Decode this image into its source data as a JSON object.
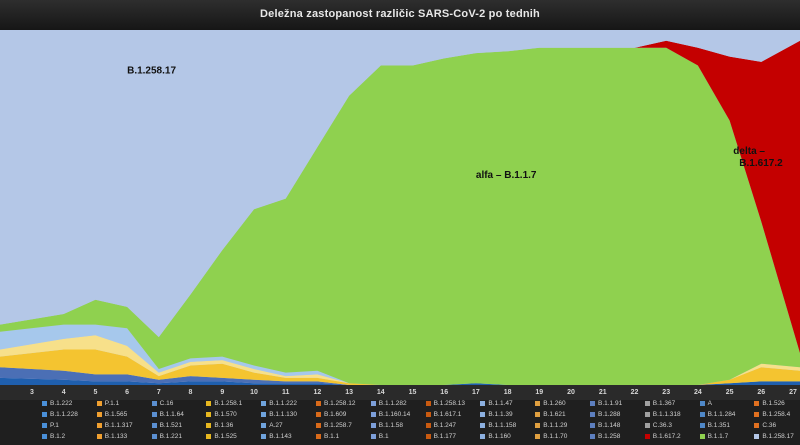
{
  "chart_data": {
    "type": "area",
    "stacked": true,
    "normalized": true,
    "title": "Deležna zastopanost različic SARS-CoV-2 po tednih",
    "xlabel": "",
    "ylabel": "",
    "x": [
      3,
      4,
      5,
      6,
      7,
      8,
      9,
      10,
      11,
      12,
      13,
      14,
      15,
      16,
      17,
      18,
      19,
      20,
      21,
      22,
      23,
      24,
      25,
      26,
      27
    ],
    "ylim": [
      0,
      1
    ],
    "grid": false,
    "legend_position": "bottom",
    "annotations": [
      {
        "text": "B.1.258.17",
        "series": "B.1.258.17"
      },
      {
        "text": "alfa – B.1.1.7",
        "series": "B.1.1.7"
      },
      {
        "text": "delta –",
        "series": "B.1.617.2"
      },
      {
        "text": "B.1.617.2",
        "series": "B.1.617.2"
      }
    ],
    "series": [
      {
        "name": "B.1.1.7",
        "color": "#8fd14f",
        "values": [
          0.02,
          0.03,
          0.07,
          0.06,
          0.09,
          0.18,
          0.3,
          0.44,
          0.49,
          0.63,
          0.81,
          0.9,
          0.9,
          0.92,
          0.93,
          0.94,
          0.95,
          0.95,
          0.95,
          0.95,
          0.95,
          0.9,
          0.73,
          0.4,
          0.04
        ]
      },
      {
        "name": "B.1.617.2",
        "color": "#c40000",
        "values": [
          0,
          0,
          0,
          0,
          0,
          0,
          0,
          0,
          0,
          0,
          0,
          0,
          0,
          0,
          0,
          0,
          0,
          0,
          0,
          0,
          0.02,
          0.05,
          0.18,
          0.45,
          0.88
        ]
      },
      {
        "name": "P.1",
        "color": "#1f5fae",
        "values": [
          0.02,
          0.015,
          0.01,
          0.01,
          0.005,
          0.01,
          0.01,
          0.005,
          0.005,
          0.005,
          0,
          0,
          0,
          0,
          0.005,
          0,
          0,
          0,
          0,
          0,
          0,
          0,
          0.005,
          0.01,
          0.01
        ]
      },
      {
        "name": "B.1.160",
        "color": "#4b6fb5",
        "values": [
          0.03,
          0.025,
          0.02,
          0.02,
          0.01,
          0.015,
          0.01,
          0.01,
          0.005,
          0.005,
          0,
          0,
          0,
          0,
          0,
          0,
          0,
          0,
          0,
          0,
          0,
          0,
          0,
          0,
          0
        ]
      },
      {
        "name": "B.1.1.70",
        "color": "#f4c430",
        "values": [
          0.03,
          0.06,
          0.07,
          0.05,
          0.01,
          0.03,
          0.04,
          0.02,
          0.01,
          0.01,
          0.005,
          0,
          0,
          0,
          0,
          0,
          0,
          0,
          0,
          0,
          0,
          0,
          0.01,
          0.04,
          0.03
        ]
      },
      {
        "name": "B.1.221",
        "color": "#f7e08a",
        "values": [
          0.02,
          0.03,
          0.04,
          0.03,
          0.01,
          0.01,
          0.01,
          0.01,
          0.005,
          0.01,
          0,
          0,
          0,
          0,
          0,
          0,
          0,
          0,
          0,
          0,
          0,
          0,
          0,
          0.01,
          0.01
        ]
      },
      {
        "name": "B.1.1.318",
        "color": "#a6c8ec",
        "values": [
          0.05,
          0.04,
          0.03,
          0.05,
          0.01,
          0.01,
          0.01,
          0.01,
          0.01,
          0.01,
          0,
          0,
          0,
          0,
          0,
          0,
          0,
          0,
          0,
          0,
          0,
          0,
          0,
          0,
          0
        ]
      },
      {
        "name": "B.1.258.17",
        "color": "#b4c7e7",
        "values": [
          0.83,
          0.795,
          0.76,
          0.78,
          0.855,
          0.745,
          0.62,
          0.505,
          0.475,
          0.33,
          0.185,
          0.1,
          0.1,
          0.08,
          0.065,
          0.06,
          0.05,
          0.05,
          0.05,
          0.05,
          0.03,
          0.05,
          0.075,
          0.09,
          0.02
        ]
      }
    ],
    "legend_columns": [
      [
        "B.1.222",
        "B.1.1.228",
        "P.1",
        "B.1.2"
      ],
      [
        "P.1.1",
        "B.1.565",
        "B.1.1.317",
        "B.1.133"
      ],
      [
        "C.16",
        "B.1.1.64",
        "B.1.521",
        "B.1.221"
      ],
      [
        "B.1.258.1",
        "B.1.570",
        "B.1.36",
        "B.1.525"
      ],
      [
        "B.1.1.222",
        "B.1.1.130",
        "A.27",
        "B.1.143"
      ],
      [
        "B.1.258.12",
        "B.1.609",
        "B.1.258.7",
        "B.1.1"
      ],
      [
        "B.1.1.282",
        "B.1.160.14",
        "B.1.1.58",
        "B.1"
      ],
      [
        "B.1.258.13",
        "B.1.617.1",
        "B.1.247",
        "B.1.177"
      ],
      [
        "B.1.1.47",
        "B.1.1.39",
        "B.1.1.158",
        "B.1.160"
      ],
      [
        "B.1.260",
        "B.1.621",
        "B.1.1.29",
        "B.1.1.70"
      ],
      [
        "B.1.1.91",
        "B.1.288",
        "B.1.148",
        "B.1.258"
      ],
      [
        "B.1.367",
        "B.1.1.318",
        "C.36.3",
        "B.1.617.2"
      ],
      [
        "A",
        "B.1.1.284",
        "B.1.351",
        "B.1.1.7"
      ],
      [
        "B.1.526",
        "B.1.258.4",
        "C.36",
        "B.1.258.17"
      ]
    ],
    "legend_column_colors": [
      "#4a90d9",
      "#f0a030",
      "#5b8fd0",
      "#e8b820",
      "#6fa3dc",
      "#d96a1a",
      "#7c9ed8",
      "#c95a10",
      "#8cb0e0",
      "#e0a040",
      "#5d7fbf",
      "#a0a0a0",
      "#4f88c8",
      "#e07020"
    ],
    "legend_special_colors": {
      "B.1.617.2": "#c40000",
      "B.1.1.7": "#8fd14f",
      "B.1.258.17": "#b4c7e7"
    }
  }
}
